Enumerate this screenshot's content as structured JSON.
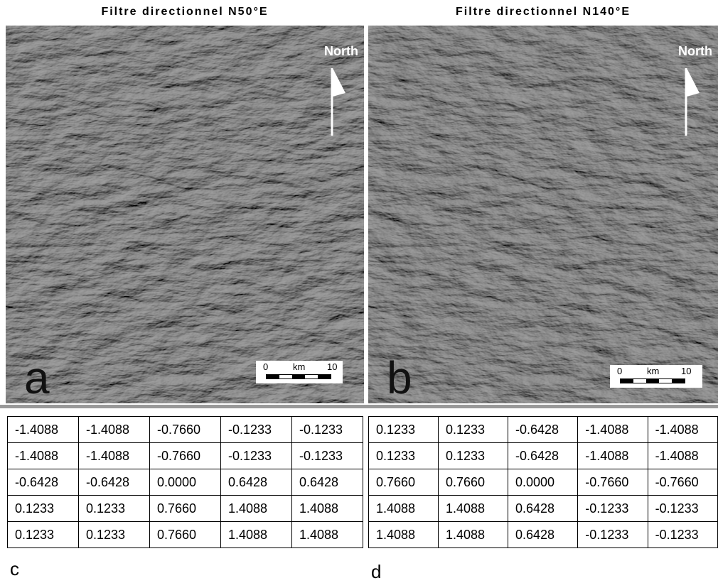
{
  "panels": [
    {
      "title": "Filtre directionnel N50°E",
      "north": "North",
      "scale": {
        "start": "0",
        "unit": "km",
        "end": "10"
      },
      "letter": "a"
    },
    {
      "title": "Filtre directionnel N140°E",
      "north": "North",
      "scale": {
        "start": "0",
        "unit": "km",
        "end": "10"
      },
      "letter": "b"
    }
  ],
  "tables": [
    {
      "label": "c",
      "rows": [
        [
          "-1.4088",
          "-1.4088",
          "-0.7660",
          "-0.1233",
          "-0.1233"
        ],
        [
          "-1.4088",
          "-1.4088",
          "-0.7660",
          "-0.1233",
          "-0.1233"
        ],
        [
          "-0.6428",
          "-0.6428",
          "0.0000",
          "0.6428",
          "0.6428"
        ],
        [
          "0.1233",
          "0.1233",
          "0.7660",
          "1.4088",
          "1.4088"
        ],
        [
          "0.1233",
          "0.1233",
          "0.7660",
          "1.4088",
          "1.4088"
        ]
      ]
    },
    {
      "label": "d",
      "rows": [
        [
          "0.1233",
          "0.1233",
          "-0.6428",
          "-1.4088",
          "-1.4088"
        ],
        [
          "0.1233",
          "0.1233",
          "-0.6428",
          "-1.4088",
          "-1.4088"
        ],
        [
          "0.7660",
          "0.7660",
          "0.0000",
          "-0.7660",
          "-0.7660"
        ],
        [
          "1.4088",
          "1.4088",
          "0.6428",
          "-0.1233",
          "-0.1233"
        ],
        [
          "1.4088",
          "1.4088",
          "0.6428",
          "-0.1233",
          "-0.1233"
        ]
      ]
    }
  ]
}
